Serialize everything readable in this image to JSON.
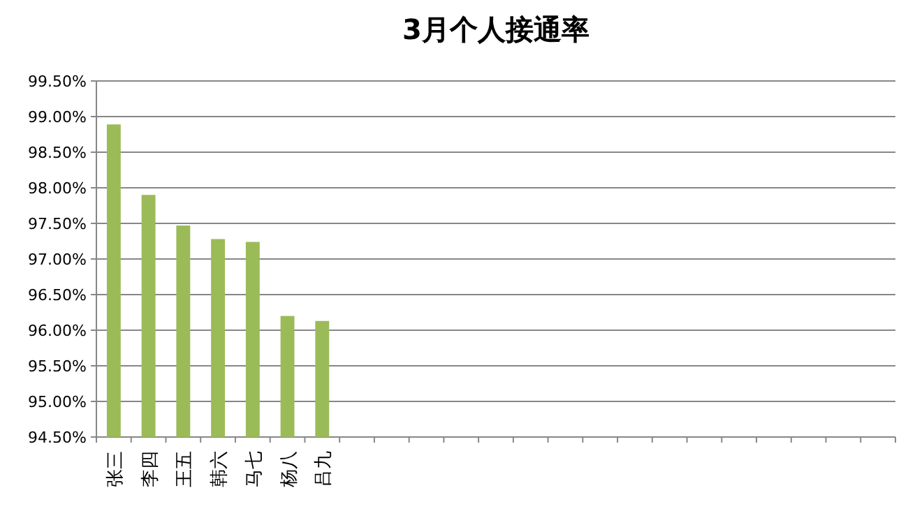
{
  "chart_data": {
    "type": "bar",
    "title": "3月个人接通率",
    "categories": [
      "张三",
      "李四",
      "王五",
      "韩六",
      "马七",
      "杨八",
      "吕九",
      null,
      null,
      null,
      null,
      null,
      null,
      null,
      null,
      null,
      null,
      null,
      null,
      null,
      null,
      null,
      null
    ],
    "values": [
      98.89,
      97.9,
      97.47,
      97.28,
      97.24,
      96.2,
      96.13,
      null,
      null,
      null,
      null,
      null,
      null,
      null,
      null,
      null,
      null,
      null,
      null,
      null,
      null,
      null,
      null
    ],
    "color": "#9bbb59",
    "ylim": [
      94.5,
      99.5
    ],
    "yticks": [
      {
        "value": 94.5,
        "label": "94.50%"
      },
      {
        "value": 95,
        "label": "95.00%"
      },
      {
        "value": 95.5,
        "label": "95.50%"
      },
      {
        "value": 96,
        "label": "96.00%"
      },
      {
        "value": 96.5,
        "label": "96.50%"
      },
      {
        "value": 97,
        "label": "97.00%"
      },
      {
        "value": 97.5,
        "label": "97.50%"
      },
      {
        "value": 98,
        "label": "98.00%"
      },
      {
        "value": 98.5,
        "label": "98.50%"
      },
      {
        "value": 99,
        "label": "99.00%"
      },
      {
        "value": 99.5,
        "label": "99.50%"
      }
    ],
    "grid": "y"
  }
}
